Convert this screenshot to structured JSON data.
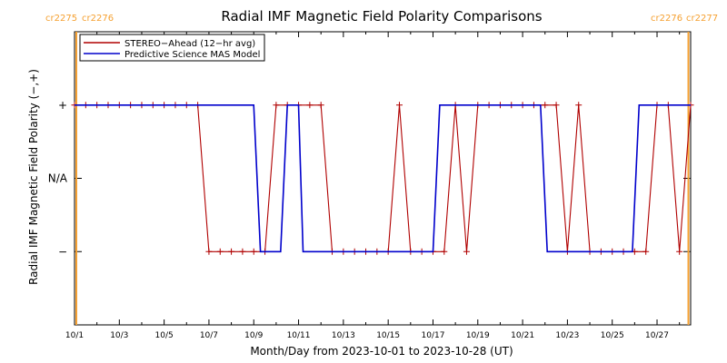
{
  "chart_data": {
    "type": "line",
    "title": "Radial IMF Magnetic Field Polarity Comparisons",
    "xlabel": "Month/Day from 2023-10-01 to 2023-10-28 (UT)",
    "ylabel": "Radial IMF Magnetic Field Polarity (−,+)",
    "xlim": [
      0,
      27.5
    ],
    "ylim": [
      -2,
      2
    ],
    "x_unit": "days since 2023-10-01 00:00 UT",
    "x_ticks": [
      {
        "x": 0,
        "label": "10/1"
      },
      {
        "x": 2,
        "label": "10/3"
      },
      {
        "x": 4,
        "label": "10/5"
      },
      {
        "x": 6,
        "label": "10/7"
      },
      {
        "x": 8,
        "label": "10/9"
      },
      {
        "x": 10,
        "label": "10/11"
      },
      {
        "x": 12,
        "label": "10/13"
      },
      {
        "x": 14,
        "label": "10/15"
      },
      {
        "x": 16,
        "label": "10/17"
      },
      {
        "x": 18,
        "label": "10/19"
      },
      {
        "x": 20,
        "label": "10/21"
      },
      {
        "x": 22,
        "label": "10/23"
      },
      {
        "x": 24,
        "label": "10/25"
      },
      {
        "x": 26,
        "label": "10/27"
      }
    ],
    "y_ticks": [
      {
        "y": 1,
        "label": "+"
      },
      {
        "y": 0,
        "label": "N/A"
      },
      {
        "y": -1,
        "label": "−"
      }
    ],
    "carrington": [
      {
        "x": 0.08,
        "left_label": "cr2275",
        "right_label": "cr2276"
      },
      {
        "x": 27.4,
        "left_label": "cr2276",
        "right_label": "cr2277"
      }
    ],
    "colors": {
      "stereo": "#b00000",
      "mas": "#0000cc",
      "carrington": "#f5a030",
      "axis": "#000000"
    },
    "legend": {
      "position": "top-left"
    },
    "series": [
      {
        "name": "STEREO−Ahead (12−hr avg)",
        "key": "stereo",
        "marker": "plus",
        "x": [
          0,
          0.5,
          1.0,
          1.5,
          2.0,
          2.5,
          3.0,
          3.5,
          4.0,
          4.5,
          5.0,
          5.5,
          6.0,
          6.5,
          7.0,
          7.5,
          8.0,
          8.5,
          9.0,
          9.5,
          10.0,
          10.5,
          11.0,
          11.5,
          12.0,
          12.5,
          13.0,
          13.5,
          14.0,
          14.5,
          15.0,
          15.5,
          16.0,
          16.5,
          17.0,
          17.5,
          18.0,
          18.5,
          19.0,
          19.5,
          20.0,
          20.5,
          21.0,
          21.5,
          22.0,
          22.5,
          23.0,
          23.5,
          24.0,
          24.5,
          25.0,
          25.5,
          26.0,
          26.5,
          27.0,
          27.5
        ],
        "y": [
          1,
          1,
          1,
          1,
          1,
          1,
          1,
          1,
          1,
          1,
          1,
          1,
          -1,
          -1,
          -1,
          -1,
          -1,
          -1,
          1,
          1,
          1,
          1,
          1,
          -1,
          -1,
          -1,
          -1,
          -1,
          -1,
          1,
          -1,
          -1,
          -1,
          -1,
          1,
          -1,
          1,
          1,
          1,
          1,
          1,
          1,
          1,
          1,
          -1,
          1,
          -1,
          -1,
          -1,
          -1,
          -1,
          -1,
          1,
          1,
          -1,
          1
        ]
      },
      {
        "name": "Predictive Science MAS Model",
        "key": "mas",
        "marker": "none",
        "x": [
          0,
          8.0,
          8.3,
          9.2,
          9.5,
          10.0,
          10.2,
          16.0,
          16.3,
          20.8,
          21.1,
          24.9,
          25.2,
          27.5
        ],
        "y": [
          1,
          1,
          -1,
          -1,
          1,
          1,
          -1,
          -1,
          1,
          1,
          -1,
          -1,
          1,
          1
        ]
      }
    ]
  }
}
